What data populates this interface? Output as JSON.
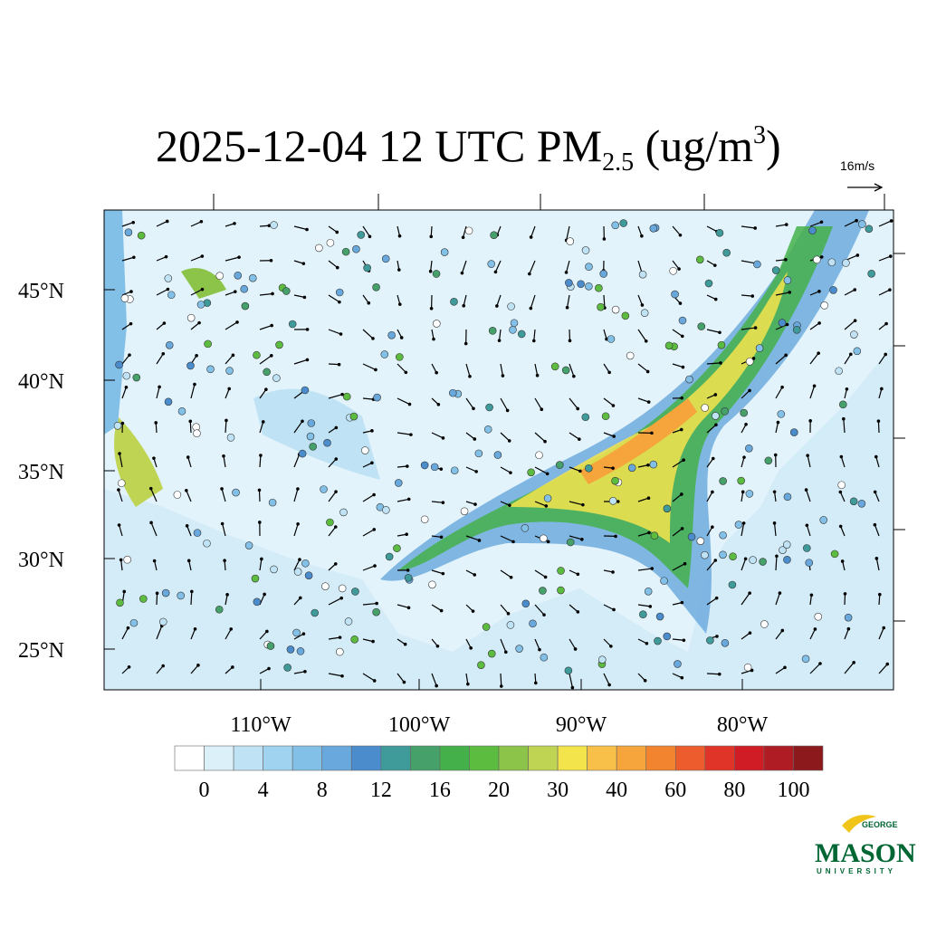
{
  "title": {
    "main": "2025-12-04 12 UTC PM",
    "sub": "2.5",
    "unit": " (ug/m",
    "sup": "3",
    "close": ")"
  },
  "wind_reference": "16m/s",
  "lat_labels": [
    "45°N",
    "40°N",
    "35°N",
    "30°N",
    "25°N"
  ],
  "lon_labels": [
    "110°W",
    "100°W",
    "90°W",
    "80°W"
  ],
  "colorbar": {
    "colors": [
      "#ffffff",
      "#dcf0fa",
      "#bfe3f5",
      "#9fd3f0",
      "#82c0e8",
      "#68a8dc",
      "#4a8ccc",
      "#3f9a9a",
      "#45a06a",
      "#44b04a",
      "#5cbc40",
      "#8cc44a",
      "#c0d454",
      "#f4e44c",
      "#f8c048",
      "#f6a43c",
      "#f28430",
      "#ec5c2c",
      "#e03428",
      "#d01c24",
      "#b01c24",
      "#8c1a1c"
    ],
    "labels": [
      "0",
      "4",
      "8",
      "12",
      "16",
      "20",
      "30",
      "40",
      "60",
      "80",
      "100"
    ]
  },
  "logo": {
    "top": "GEORGE",
    "main": "MASON",
    "bottom": "UNIVERSITY"
  }
}
